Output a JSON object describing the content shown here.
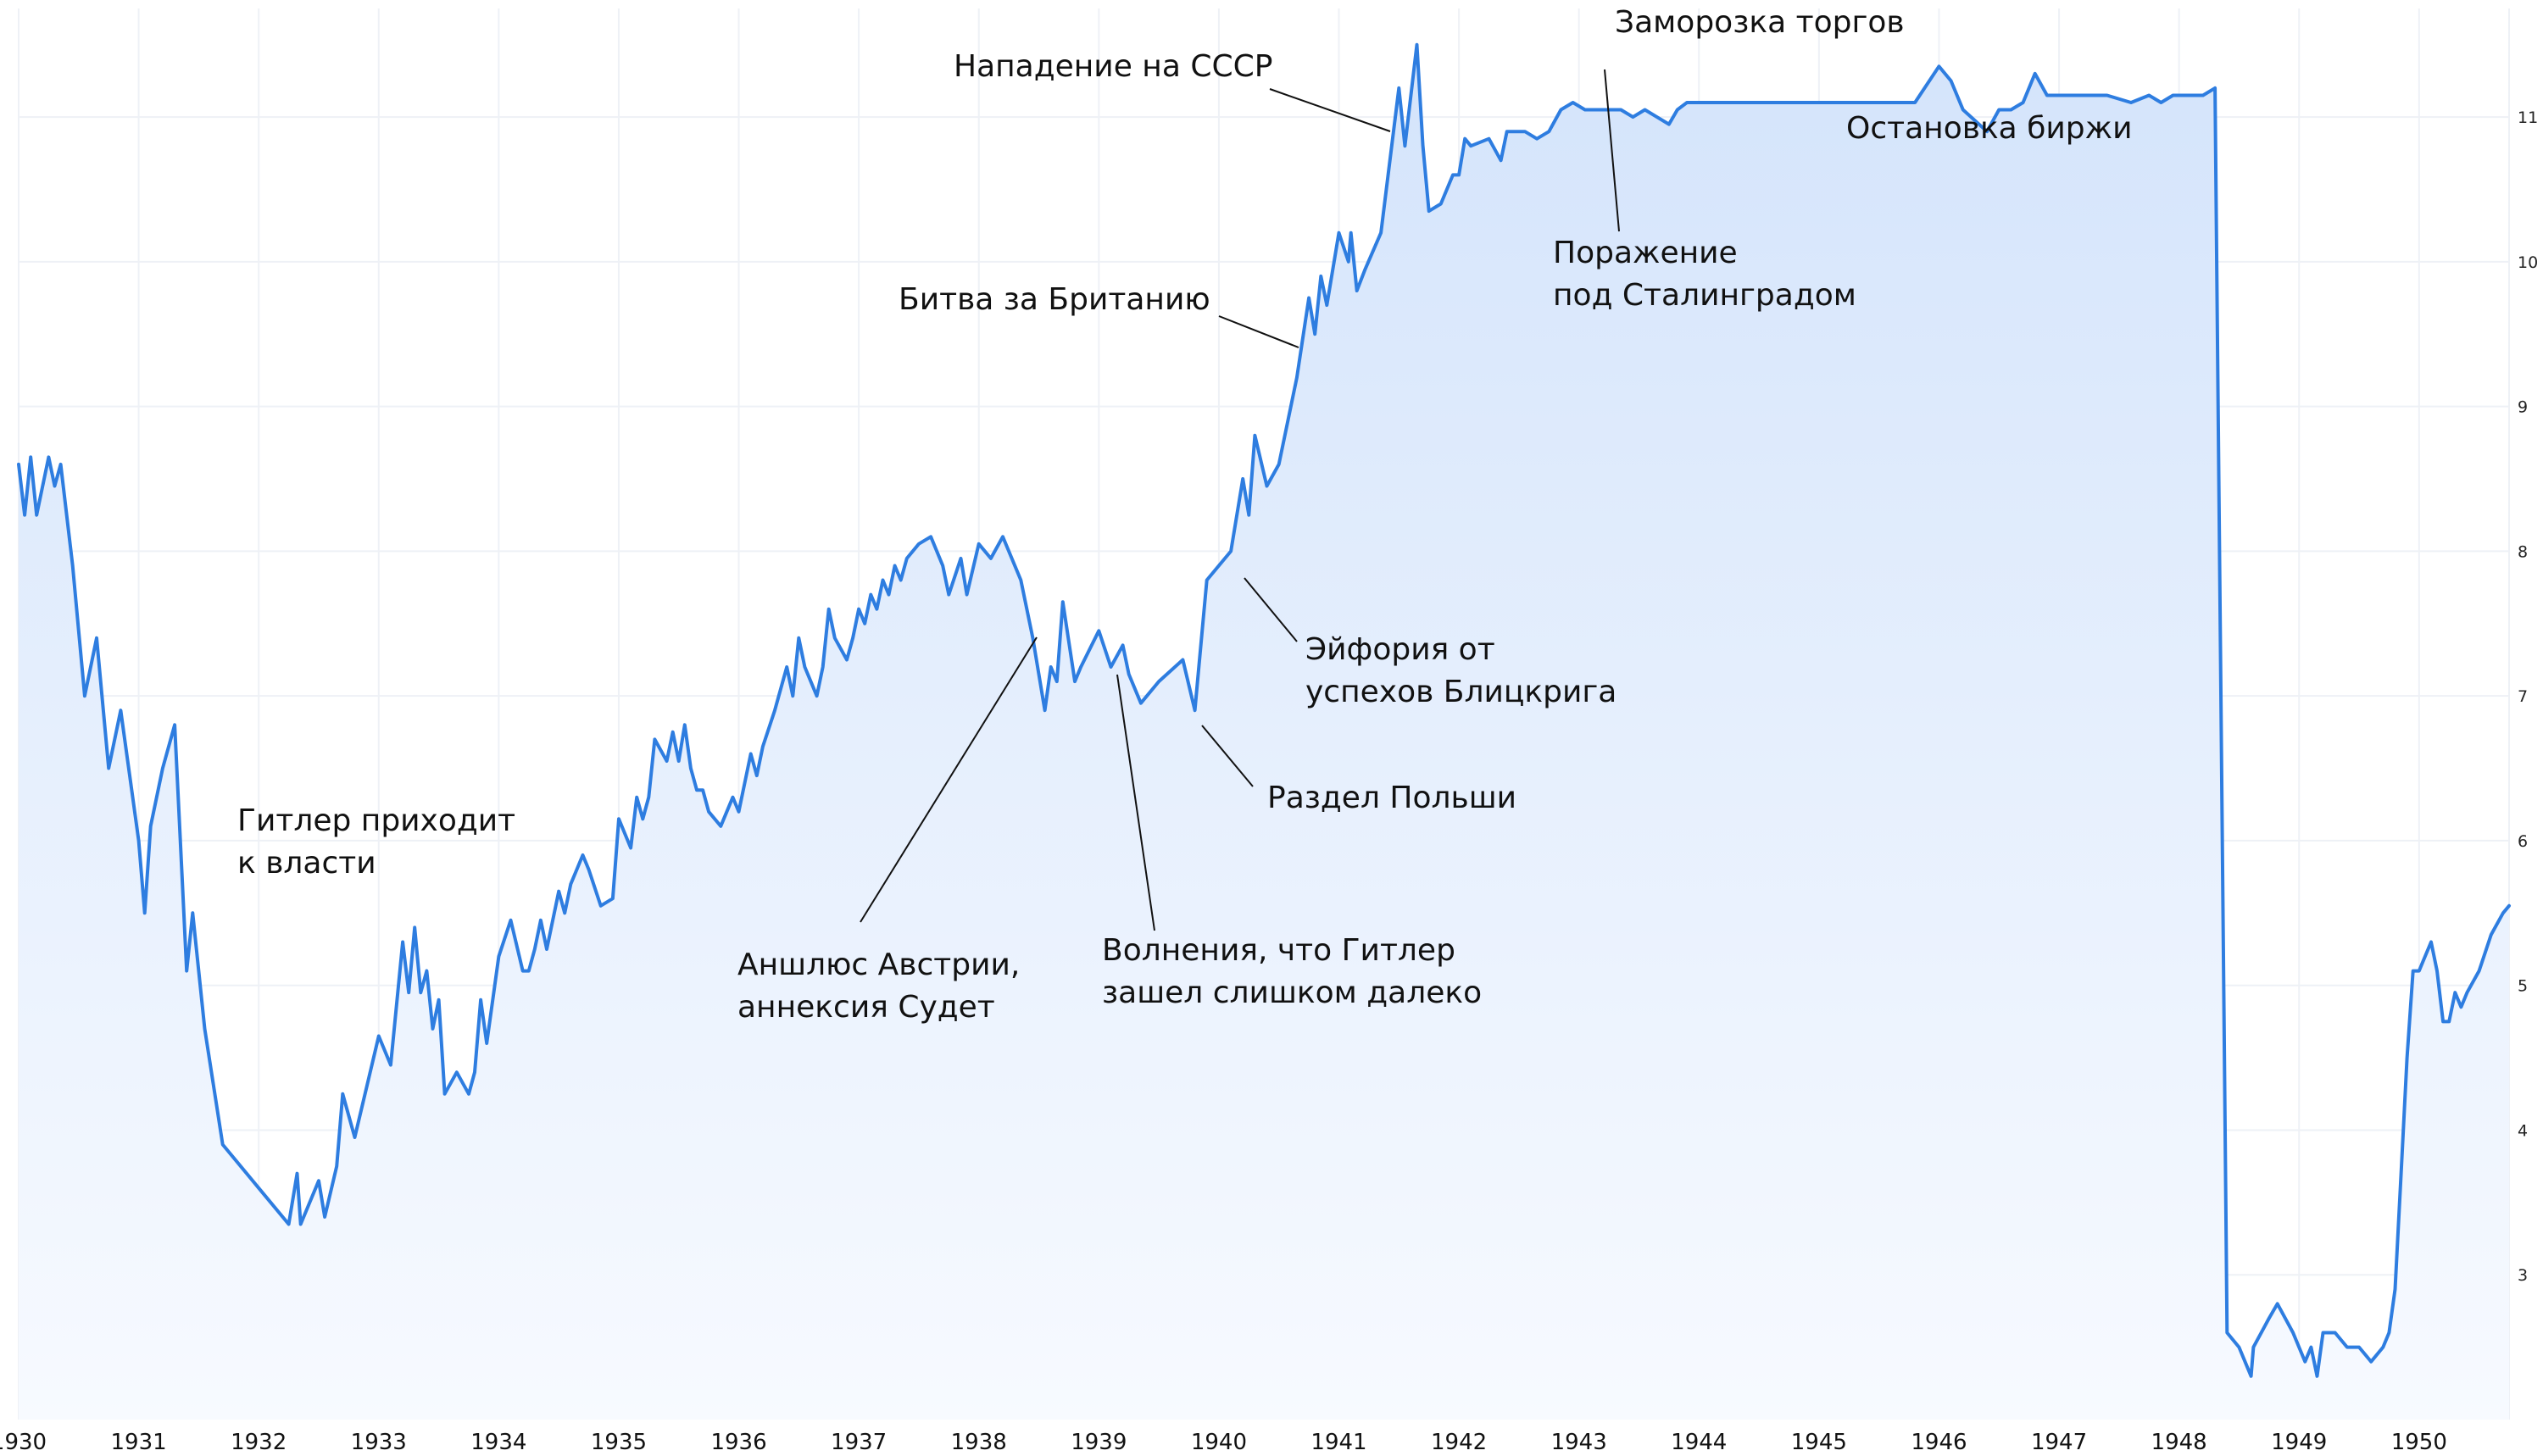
{
  "chart_data": {
    "type": "area",
    "title": "",
    "xlabel": "",
    "ylabel": "",
    "xlim": [
      1930,
      1950.75
    ],
    "ylim": [
      2.0,
      11.75
    ],
    "grid": true,
    "x_ticks": [
      "1930",
      "1931",
      "1932",
      "1933",
      "1934",
      "1935",
      "1936",
      "1937",
      "1938",
      "1939",
      "1940",
      "1941",
      "1942",
      "1943",
      "1944",
      "1945",
      "1946",
      "1947",
      "1948",
      "1949",
      "1950"
    ],
    "y_ticks": [
      "3",
      "4",
      "5",
      "6",
      "7",
      "8",
      "9",
      "10",
      "11"
    ],
    "colors": {
      "line": "#2e7de0",
      "fill_top": "#d4e4fb",
      "fill_bottom": "#f7faff"
    },
    "series": [
      {
        "x": [
          1930.0,
          1930.05,
          1930.1,
          1930.15,
          1930.25,
          1930.3,
          1930.35,
          1930.45,
          1930.55,
          1930.65,
          1930.75,
          1930.85,
          1931.0,
          1931.05,
          1931.1,
          1931.2,
          1931.3,
          1931.4,
          1931.45,
          1931.55,
          1931.7,
          1932.0,
          1932.25,
          1932.32,
          1932.35,
          1932.4,
          1932.5,
          1932.55,
          1932.65,
          1932.7,
          1932.8,
          1933.0,
          1933.1,
          1933.2,
          1933.25,
          1933.3,
          1933.35,
          1933.4,
          1933.45,
          1933.5,
          1933.55,
          1933.65,
          1933.75,
          1933.8,
          1933.85,
          1933.9,
          1934.0,
          1934.1,
          1934.2,
          1934.25,
          1934.3,
          1934.35,
          1934.4,
          1934.5,
          1934.55,
          1934.6,
          1934.65,
          1934.7,
          1934.75,
          1934.85,
          1934.95,
          1935.0,
          1935.1,
          1935.15,
          1935.2,
          1935.25,
          1935.3,
          1935.4,
          1935.45,
          1935.5,
          1935.55,
          1935.6,
          1935.65,
          1935.7,
          1935.75,
          1935.85,
          1935.95,
          1936.0,
          1936.05,
          1936.1,
          1936.15,
          1936.2,
          1936.3,
          1936.4,
          1936.45,
          1936.5,
          1936.55,
          1936.65,
          1936.7,
          1936.75,
          1936.8,
          1936.9,
          1936.95,
          1937.0,
          1937.05,
          1937.1,
          1937.15,
          1937.2,
          1937.25,
          1937.3,
          1937.35,
          1937.4,
          1937.5,
          1937.6,
          1937.7,
          1937.75,
          1937.85,
          1937.9,
          1938.0,
          1938.1,
          1938.2,
          1938.35,
          1938.45,
          1938.55,
          1938.6,
          1938.65,
          1938.7,
          1938.8,
          1938.85,
          1939.0,
          1939.1,
          1939.2,
          1939.25,
          1939.35,
          1939.5,
          1939.7,
          1939.8,
          1939.9,
          1940.1,
          1940.2,
          1940.25,
          1940.3,
          1940.4,
          1940.5,
          1940.65,
          1940.75,
          1940.8,
          1940.85,
          1940.9,
          1941.0,
          1941.08,
          1941.1,
          1941.15,
          1941.22,
          1941.35,
          1941.5,
          1941.55,
          1941.65,
          1941.7,
          1941.75,
          1941.85,
          1941.95,
          1942.0,
          1942.05,
          1942.1,
          1942.25,
          1942.35,
          1942.4,
          1942.55,
          1942.65,
          1942.75,
          1942.85,
          1942.95,
          1943.05,
          1943.1,
          1943.15,
          1943.25,
          1943.35,
          1943.45,
          1943.55,
          1943.65,
          1943.75,
          1943.82,
          1943.9,
          1944.0,
          1944.1,
          1944.2,
          1944.4,
          1944.6,
          1944.8,
          1945.0,
          1945.3,
          1945.5,
          1945.8,
          1946.0,
          1946.1,
          1946.2,
          1946.4,
          1946.5,
          1946.6,
          1946.7,
          1946.8,
          1946.9,
          1947.0,
          1947.2,
          1947.4,
          1947.6,
          1947.75,
          1947.85,
          1947.95,
          1948.0,
          1948.1,
          1948.2,
          1948.3,
          1948.4,
          1948.5,
          1948.6,
          1948.62,
          1948.75,
          1948.82,
          1948.95,
          1949.0,
          1949.05,
          1949.1,
          1949.15,
          1949.2,
          1949.3,
          1949.4,
          1949.5,
          1949.6,
          1949.7,
          1949.75,
          1949.8,
          1949.85,
          1949.9,
          1949.95,
          1950.0,
          1950.05,
          1950.1,
          1950.15,
          1950.2,
          1950.25,
          1950.3,
          1950.35,
          1950.4,
          1950.5,
          1950.6,
          1950.7,
          1950.75
        ],
        "y": [
          8.6,
          8.25,
          8.65,
          8.25,
          8.65,
          8.45,
          8.6,
          7.9,
          7.0,
          7.4,
          6.5,
          6.9,
          6.0,
          5.5,
          6.1,
          6.5,
          6.8,
          5.1,
          5.5,
          4.7,
          3.9,
          3.6,
          3.35,
          3.7,
          3.35,
          3.45,
          3.65,
          3.4,
          3.75,
          4.25,
          3.95,
          4.65,
          4.45,
          5.3,
          4.95,
          5.4,
          4.95,
          5.1,
          4.7,
          4.9,
          4.25,
          4.4,
          4.25,
          4.4,
          4.9,
          4.6,
          5.2,
          5.45,
          5.1,
          5.1,
          5.25,
          5.45,
          5.25,
          5.65,
          5.5,
          5.7,
          5.8,
          5.9,
          5.8,
          5.55,
          5.6,
          6.15,
          5.95,
          6.3,
          6.15,
          6.3,
          6.7,
          6.55,
          6.75,
          6.55,
          6.8,
          6.5,
          6.35,
          6.35,
          6.2,
          6.1,
          6.3,
          6.2,
          6.4,
          6.6,
          6.45,
          6.65,
          6.9,
          7.2,
          7.0,
          7.4,
          7.2,
          7.0,
          7.2,
          7.6,
          7.4,
          7.25,
          7.4,
          7.6,
          7.5,
          7.7,
          7.6,
          7.8,
          7.7,
          7.9,
          7.8,
          7.95,
          8.05,
          8.1,
          7.9,
          7.7,
          7.95,
          7.7,
          8.05,
          7.95,
          8.1,
          7.8,
          7.4,
          6.9,
          7.2,
          7.1,
          7.65,
          7.1,
          7.2,
          7.45,
          7.2,
          7.35,
          7.15,
          6.95,
          7.1,
          7.25,
          6.9,
          7.8,
          8.0,
          8.5,
          8.25,
          8.8,
          8.45,
          8.6,
          9.2,
          9.75,
          9.5,
          9.9,
          9.7,
          10.2,
          10.0,
          10.2,
          9.8,
          9.95,
          10.2,
          11.2,
          10.8,
          11.5,
          10.8,
          10.35,
          10.4,
          10.6,
          10.6,
          10.85,
          10.8,
          10.85,
          10.7,
          10.9,
          10.9,
          10.85,
          10.9,
          11.05,
          11.1,
          11.05,
          11.05,
          11.05,
          11.05,
          11.05,
          11.0,
          11.05,
          11.0,
          10.95,
          11.05,
          11.1,
          11.1,
          11.1,
          11.1,
          11.1,
          11.1,
          11.1,
          11.1,
          11.1,
          11.1,
          11.1,
          11.35,
          11.25,
          11.05,
          10.9,
          11.05,
          11.05,
          11.1,
          11.3,
          11.15,
          11.15,
          11.15,
          11.15,
          11.1,
          11.15,
          11.1,
          11.15,
          11.15,
          11.15,
          11.15,
          11.2,
          2.6,
          2.5,
          2.3,
          2.5,
          2.7,
          2.8,
          2.6,
          2.5,
          2.4,
          2.5,
          2.3,
          2.6,
          2.6,
          2.5,
          2.5,
          2.4,
          2.5,
          2.6,
          2.9,
          3.7,
          4.5,
          5.1,
          5.1,
          5.2,
          5.3,
          5.1,
          4.75,
          4.75,
          4.95,
          4.85,
          4.95,
          5.1,
          5.35,
          5.5,
          5.55
        ]
      }
    ],
    "annotations": [
      {
        "text": "Гитлер приходит\nк власти"
      },
      {
        "text": "Аншлюс Австрии,\nаннексия Судет"
      },
      {
        "text": "Волнения, что Гитлер\nзашел слишком далеко"
      },
      {
        "text": "Раздел Польши"
      },
      {
        "text": "Эйфория от\nуспехов Блицкрига"
      },
      {
        "text": "Битва за Британию"
      },
      {
        "text": "Нападение на СССР"
      },
      {
        "text": "Поражение\nпод Сталинградом"
      },
      {
        "text": "Заморозка торгов"
      },
      {
        "text": "Остановка биржи"
      }
    ]
  }
}
